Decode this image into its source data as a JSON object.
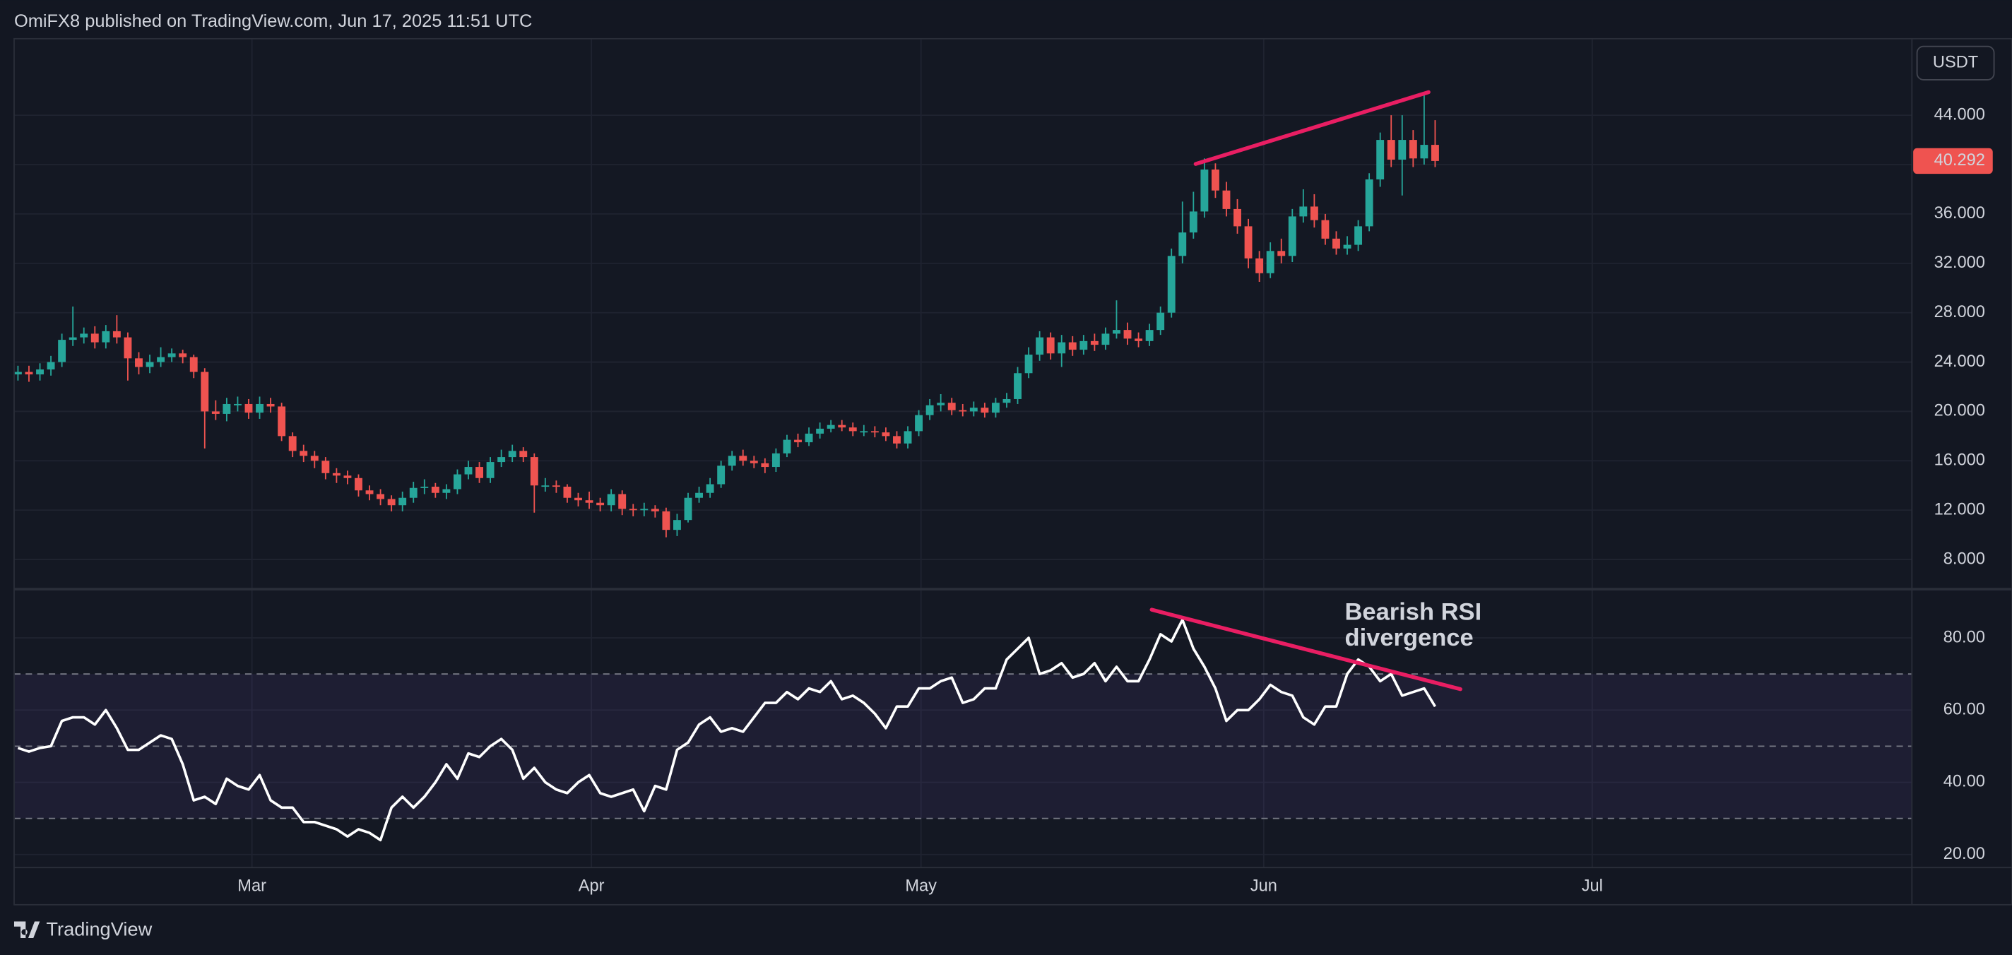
{
  "header": "OmiFX8 published on TradingView.com, Jun 17, 2025 11:51 UTC",
  "footer": "TradingView",
  "currency": "USDT",
  "annotation": [
    "Bearish RSI",
    "divergence"
  ],
  "annotation_color": "#f7931a",
  "chart_data": [
    {
      "type": "candlestick",
      "colors": {
        "up": "#26a69a",
        "down": "#ef5350"
      },
      "xlim": [
        -0.35,
        172.4
      ],
      "ylim": [
        5.6,
        50.2
      ],
      "yticks": [
        {
          "value": 8,
          "label": "8.000"
        },
        {
          "value": 12,
          "label": "12.000"
        },
        {
          "value": 16,
          "label": "16.000"
        },
        {
          "value": 20,
          "label": "20.000"
        },
        {
          "value": 24,
          "label": "24.000"
        },
        {
          "value": 28,
          "label": "28.000"
        },
        {
          "value": 32,
          "label": "32.000"
        },
        {
          "value": 36,
          "label": "36.000"
        },
        {
          "value": 40,
          "label": "40.000"
        },
        {
          "value": 44,
          "label": "44.000"
        }
      ],
      "grid": true,
      "open": [
        23.0,
        23.2,
        23.0,
        23.4,
        24.0,
        25.8,
        26.0,
        26.3,
        25.6,
        26.5,
        26.0,
        24.3,
        23.6,
        24.0,
        24.4,
        24.7,
        24.4,
        23.2,
        20.0,
        19.8,
        20.6,
        20.6,
        19.9,
        20.6,
        20.4,
        18.0,
        16.8,
        16.4,
        16.0,
        15.0,
        14.8,
        14.6,
        13.6,
        13.3,
        12.9,
        12.4,
        13.0,
        13.8,
        13.9,
        13.4,
        13.7,
        14.9,
        15.5,
        14.6,
        15.9,
        16.3,
        16.8,
        16.3,
        14.0,
        14.0,
        13.9,
        13.0,
        12.8,
        12.6,
        12.4,
        13.3,
        12.1,
        12.0,
        12.1,
        11.9,
        10.4,
        11.2,
        13.0,
        13.4,
        14.1,
        15.6,
        16.4,
        16.0,
        15.8,
        15.5,
        16.6,
        17.7,
        17.5,
        18.2,
        18.6,
        18.9,
        18.7,
        18.4,
        18.4,
        18.3,
        18.0,
        17.4,
        18.4,
        19.7,
        20.5,
        20.7,
        20.1,
        20.0,
        20.3,
        19.9,
        20.7,
        21.0,
        23.1,
        24.6,
        26.0,
        24.7,
        25.6,
        25.0,
        25.7,
        25.4,
        26.3,
        26.6,
        25.9,
        25.7,
        26.6,
        28.0,
        32.6,
        34.5,
        36.2,
        39.6,
        37.9,
        36.4,
        35.0,
        32.4,
        31.2,
        33.0,
        32.6,
        35.8,
        36.6,
        35.5,
        34.0,
        33.2,
        33.5,
        35.0,
        38.8,
        42.0,
        40.4,
        42.0,
        40.5,
        41.6
      ],
      "high": [
        23.7,
        23.7,
        23.9,
        24.5,
        26.3,
        28.5,
        26.8,
        26.9,
        27.0,
        27.8,
        26.4,
        24.8,
        24.6,
        25.2,
        25.1,
        25.0,
        24.6,
        23.5,
        20.9,
        21.1,
        21.2,
        21.0,
        21.2,
        21.1,
        20.7,
        18.3,
        17.3,
        16.8,
        16.3,
        15.4,
        15.2,
        14.9,
        14.0,
        13.7,
        13.2,
        13.5,
        14.3,
        14.5,
        14.2,
        14.1,
        15.3,
        16.0,
        15.9,
        16.3,
        16.9,
        17.3,
        17.1,
        16.6,
        14.6,
        14.4,
        14.1,
        13.4,
        13.5,
        13.0,
        13.7,
        13.6,
        12.5,
        12.6,
        12.4,
        12.2,
        11.7,
        13.4,
        13.9,
        14.6,
        16.0,
        16.8,
        16.9,
        16.4,
        16.2,
        17.0,
        18.1,
        18.2,
        18.7,
        19.1,
        19.3,
        19.3,
        19.1,
        18.9,
        18.8,
        18.7,
        18.4,
        18.8,
        20.1,
        21.0,
        21.4,
        21.1,
        20.6,
        20.8,
        20.7,
        21.1,
        21.5,
        23.6,
        25.2,
        26.5,
        26.4,
        26.2,
        26.1,
        26.2,
        26.3,
        26.8,
        29.0,
        27.2,
        26.4,
        27.1,
        28.5,
        33.2,
        37.0,
        37.8,
        40.5,
        40.1,
        38.6,
        37.2,
        35.6,
        33.0,
        33.7,
        34.0,
        36.4,
        38.0,
        37.6,
        36.0,
        34.6,
        34.2,
        35.5,
        39.3,
        42.6,
        44.0,
        44.0,
        42.8,
        45.8,
        43.6
      ],
      "low": [
        22.5,
        22.4,
        22.5,
        22.9,
        23.6,
        25.3,
        25.5,
        25.1,
        25.1,
        25.5,
        22.5,
        23.0,
        23.1,
        23.6,
        24.0,
        23.9,
        22.7,
        17.0,
        19.3,
        19.2,
        20.0,
        19.4,
        19.4,
        19.9,
        17.6,
        16.3,
        15.9,
        15.4,
        14.5,
        14.2,
        14.1,
        13.1,
        12.8,
        12.4,
        11.9,
        11.9,
        12.6,
        13.3,
        13.0,
        12.9,
        13.3,
        14.5,
        14.2,
        14.2,
        15.5,
        15.9,
        15.9,
        11.8,
        13.5,
        13.4,
        12.6,
        12.3,
        12.1,
        11.9,
        11.9,
        11.6,
        11.5,
        11.5,
        11.4,
        9.8,
        9.9,
        11.0,
        12.6,
        13.0,
        13.8,
        15.2,
        15.6,
        15.4,
        15.0,
        15.1,
        16.3,
        17.1,
        17.2,
        17.8,
        18.3,
        18.4,
        18.0,
        18.0,
        17.9,
        17.6,
        17.0,
        17.0,
        18.0,
        19.3,
        20.0,
        19.7,
        19.6,
        19.6,
        19.5,
        19.5,
        20.3,
        20.6,
        22.7,
        24.1,
        24.2,
        23.6,
        24.5,
        24.6,
        24.9,
        25.0,
        25.9,
        25.4,
        25.2,
        25.3,
        26.2,
        27.6,
        32.0,
        34.0,
        35.7,
        37.3,
        35.8,
        34.4,
        31.6,
        30.5,
        30.8,
        32.0,
        32.1,
        35.3,
        34.9,
        33.5,
        32.7,
        32.7,
        33.0,
        34.6,
        38.2,
        39.8,
        37.5,
        39.8,
        40.0,
        39.8
      ],
      "close": [
        23.2,
        23.0,
        23.4,
        24.0,
        25.8,
        26.0,
        26.3,
        25.6,
        26.5,
        26.0,
        24.3,
        23.6,
        24.0,
        24.4,
        24.7,
        24.4,
        23.2,
        20.0,
        19.8,
        20.6,
        20.6,
        19.9,
        20.6,
        20.4,
        18.0,
        16.8,
        16.4,
        16.0,
        15.0,
        14.8,
        14.6,
        13.6,
        13.3,
        12.9,
        12.4,
        13.0,
        13.8,
        13.9,
        13.4,
        13.7,
        14.9,
        15.5,
        14.6,
        15.9,
        16.3,
        16.8,
        16.3,
        14.0,
        14.0,
        13.9,
        13.0,
        12.8,
        12.6,
        12.4,
        13.3,
        12.1,
        12.0,
        12.1,
        11.9,
        10.4,
        11.2,
        13.0,
        13.4,
        14.1,
        15.6,
        16.4,
        16.0,
        15.8,
        15.5,
        16.6,
        17.7,
        17.5,
        18.2,
        18.6,
        18.9,
        18.7,
        18.4,
        18.4,
        18.3,
        18.0,
        17.4,
        18.4,
        19.7,
        20.5,
        20.7,
        20.1,
        20.0,
        20.3,
        19.9,
        20.7,
        21.0,
        23.1,
        24.6,
        26.0,
        24.7,
        25.6,
        25.0,
        25.7,
        25.4,
        26.3,
        26.6,
        25.9,
        25.7,
        26.6,
        28.0,
        32.6,
        34.5,
        36.2,
        39.6,
        37.9,
        36.4,
        35.0,
        32.4,
        31.2,
        33.0,
        32.6,
        35.8,
        36.6,
        35.5,
        34.0,
        33.2,
        33.5,
        35.0,
        38.8,
        42.0,
        40.4,
        42.0,
        40.5,
        41.6,
        40.292
      ],
      "trendlines": [
        {
          "color": "#e91e63",
          "x": [
            107.2,
            128.4
          ],
          "y": [
            40.05,
            45.87
          ]
        }
      ]
    },
    {
      "type": "line",
      "color": "#ffffff",
      "xlim": [
        -0.35,
        172.4
      ],
      "ylim": [
        16.4,
        93.5
      ],
      "yticks": [
        {
          "value": 20,
          "label": "20.00"
        },
        {
          "value": 40,
          "label": "40.00"
        },
        {
          "value": 60,
          "label": "60.00"
        },
        {
          "value": 80,
          "label": "80.00"
        }
      ],
      "xticks": [
        {
          "value": 21.3,
          "label": "Mar"
        },
        {
          "value": 52.2,
          "label": "Apr"
        },
        {
          "value": 82.2,
          "label": "May"
        },
        {
          "value": 113.4,
          "label": "Jun"
        },
        {
          "value": 143.3,
          "label": "Jul"
        }
      ],
      "grid": true,
      "bands": [
        30,
        50,
        70
      ],
      "band_fill": "#7e57c2",
      "values": [
        49.5,
        48.5,
        49.5,
        50,
        57,
        58,
        58,
        56,
        60,
        55,
        49,
        49,
        51,
        53,
        52,
        45,
        35,
        36,
        34,
        41,
        39,
        38,
        42,
        35,
        33,
        33,
        29,
        29,
        28,
        27,
        25,
        27,
        26,
        24,
        33,
        36,
        33,
        36,
        40,
        45,
        41,
        48,
        47,
        50,
        52,
        49,
        41,
        44,
        40,
        38,
        37,
        40,
        42,
        37,
        36,
        37,
        38,
        32,
        39,
        38,
        49,
        51,
        56,
        58,
        54,
        55,
        54,
        58,
        62,
        62,
        65,
        63,
        66,
        65,
        68,
        63,
        64,
        62,
        59,
        55,
        61,
        61,
        66,
        66,
        68,
        69,
        62,
        63,
        66,
        66,
        74,
        77,
        80,
        70,
        71,
        73,
        69,
        70,
        73,
        68,
        72,
        68,
        68,
        74,
        81,
        79,
        85,
        77,
        72,
        66,
        57,
        60,
        60,
        63,
        67,
        65,
        64,
        58,
        56,
        61,
        61,
        70,
        74,
        72,
        68,
        70,
        64,
        65,
        66,
        61
      ],
      "trendlines": [
        {
          "color": "#e91e63",
          "x": [
            103.2,
            131.3
          ],
          "y": [
            87.8,
            65.8
          ]
        }
      ]
    }
  ]
}
